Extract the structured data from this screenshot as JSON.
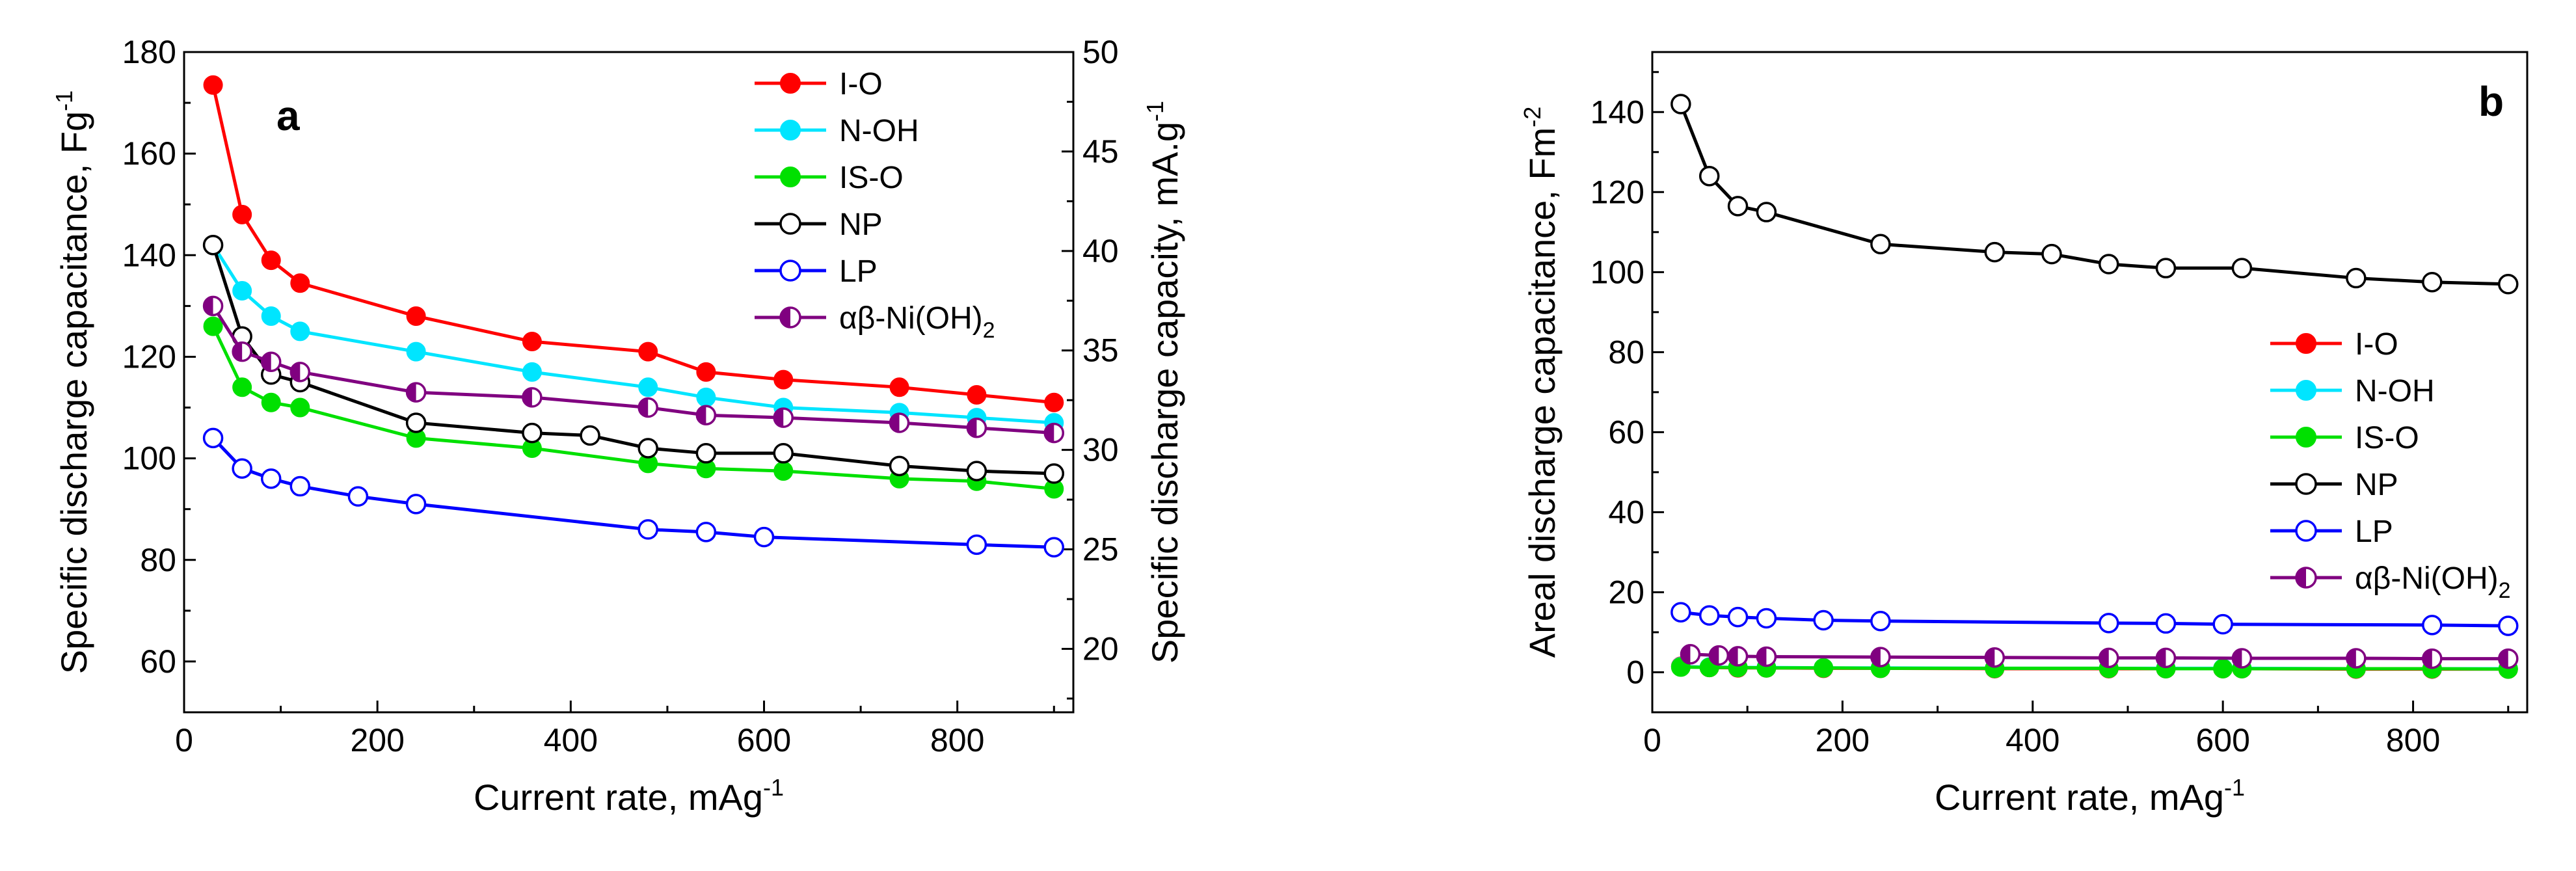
{
  "figure": {
    "marker_style": {
      "I-O": "filled",
      "N-OH": "filled",
      "IS-O": "filled",
      "NP": "open",
      "LP": "open",
      "ab-Ni(OH)2": "half"
    }
  },
  "chart_data": [
    {
      "type": "line",
      "panel_label": "a",
      "xlabel": "Current rate, mAg",
      "xlabel_sup": "-1",
      "ylabel": "Specific discharge capacitance, Fg",
      "ylabel_sup": "-1",
      "y2label": "Specific discharge capacity, mA.g",
      "y2label_sup": "-1",
      "xlim": [
        0,
        920
      ],
      "ylim": [
        50,
        180
      ],
      "y2lim": [
        16.81,
        50
      ],
      "xticks": [
        0,
        200,
        400,
        600,
        800
      ],
      "yticks": [
        60,
        80,
        100,
        120,
        140,
        160,
        180
      ],
      "y2ticks": [
        20,
        25,
        30,
        35,
        40,
        45,
        50
      ],
      "legend_position": "top-right",
      "series": [
        {
          "name": "I-O",
          "color": "#ff0000",
          "x": [
            30,
            60,
            90,
            120,
            240,
            360,
            480,
            540,
            620,
            740,
            820,
            900
          ],
          "y": [
            173.5,
            148,
            139,
            134.5,
            128,
            123,
            121,
            117,
            115.5,
            114,
            112.5,
            111
          ]
        },
        {
          "name": "N-OH",
          "color": "#00e5ff",
          "x": [
            30,
            60,
            90,
            120,
            240,
            360,
            480,
            540,
            620,
            740,
            820,
            900
          ],
          "y": [
            142,
            133,
            128,
            125,
            121,
            117,
            114,
            112,
            110,
            109,
            108,
            107
          ]
        },
        {
          "name": "IS-O",
          "color": "#00e000",
          "x": [
            30,
            60,
            90,
            120,
            240,
            360,
            480,
            540,
            620,
            740,
            820,
            900
          ],
          "y": [
            126,
            114,
            111,
            110,
            104,
            102,
            99,
            98,
            97.5,
            96,
            95.5,
            94
          ]
        },
        {
          "name": "NP",
          "color": "#000000",
          "x": [
            30,
            60,
            90,
            120,
            240,
            360,
            420,
            480,
            540,
            620,
            740,
            820,
            900
          ],
          "y": [
            142,
            124,
            116.5,
            115,
            107,
            105,
            104.5,
            102,
            101,
            101,
            98.5,
            97.5,
            97
          ]
        },
        {
          "name": "LP",
          "color": "#0000ff",
          "x": [
            30,
            60,
            90,
            120,
            180,
            240,
            480,
            540,
            600,
            820,
            900
          ],
          "y": [
            104,
            98,
            96,
            94.5,
            92.5,
            91,
            86,
            85.5,
            84.5,
            83,
            82.5
          ]
        },
        {
          "name": "αβ-Ni(OH)",
          "name_sub": "2",
          "color": "#800080",
          "x": [
            30,
            60,
            90,
            120,
            240,
            360,
            480,
            540,
            620,
            740,
            820,
            900
          ],
          "y": [
            130,
            121,
            119,
            117,
            113,
            112,
            110,
            108.5,
            108,
            107,
            106,
            105
          ]
        }
      ]
    },
    {
      "type": "line",
      "panel_label": "b",
      "xlabel": "Current rate, mAg",
      "xlabel_sup": "-1",
      "ylabel": "Areal discharge capacitance, Fm",
      "ylabel_sup": "-2",
      "xlim": [
        0,
        920
      ],
      "ylim": [
        -10,
        155
      ],
      "xticks": [
        0,
        200,
        400,
        600,
        800
      ],
      "yticks": [
        0,
        20,
        40,
        60,
        80,
        100,
        120,
        140
      ],
      "legend_position": "center-right",
      "series": [
        {
          "name": "I-O",
          "color": "#ff0000",
          "x": [
            30,
            60,
            90,
            120,
            180,
            240,
            360,
            480,
            540,
            600,
            620,
            740,
            820,
            900
          ],
          "y": [
            1.5,
            1.2,
            1.1,
            1.1,
            1.0,
            1.0,
            0.9,
            0.9,
            0.9,
            0.9,
            0.9,
            0.8,
            0.8,
            0.8
          ]
        },
        {
          "name": "N-OH",
          "color": "#00e5ff",
          "x": [
            30,
            60,
            90,
            120,
            180,
            240,
            360,
            480,
            540,
            600,
            620,
            740,
            820,
            900
          ],
          "y": [
            1.4,
            1.3,
            1.2,
            1.2,
            1.1,
            1.1,
            1.0,
            1.0,
            1.0,
            1.0,
            1.0,
            0.9,
            0.9,
            0.9
          ]
        },
        {
          "name": "IS-O",
          "color": "#00e000",
          "x": [
            30,
            60,
            90,
            120,
            180,
            240,
            360,
            480,
            540,
            600,
            620,
            740,
            820,
            900
          ],
          "y": [
            1.3,
            1.2,
            1.2,
            1.1,
            1.1,
            1.0,
            1.0,
            1.0,
            0.9,
            0.9,
            0.9,
            0.9,
            0.9,
            0.8
          ]
        },
        {
          "name": "NP",
          "color": "#000000",
          "x": [
            30,
            60,
            90,
            120,
            240,
            360,
            420,
            480,
            540,
            620,
            740,
            820,
            900
          ],
          "y": [
            142,
            124,
            116.5,
            115,
            107,
            105,
            104.5,
            102,
            101,
            101,
            98.5,
            97.5,
            97
          ]
        },
        {
          "name": "LP",
          "color": "#0000ff",
          "x": [
            30,
            60,
            90,
            120,
            180,
            240,
            480,
            540,
            600,
            820,
            900
          ],
          "y": [
            15,
            14.2,
            13.8,
            13.5,
            13.0,
            12.8,
            12.3,
            12.2,
            12.0,
            11.8,
            11.6
          ]
        },
        {
          "name": "αβ-Ni(OH)",
          "name_sub": "2",
          "color": "#800080",
          "x": [
            40,
            70,
            90,
            120,
            240,
            360,
            480,
            540,
            620,
            740,
            820,
            900
          ],
          "y": [
            4.5,
            4.2,
            4.0,
            3.9,
            3.8,
            3.7,
            3.6,
            3.6,
            3.5,
            3.5,
            3.4,
            3.4
          ]
        }
      ]
    }
  ]
}
